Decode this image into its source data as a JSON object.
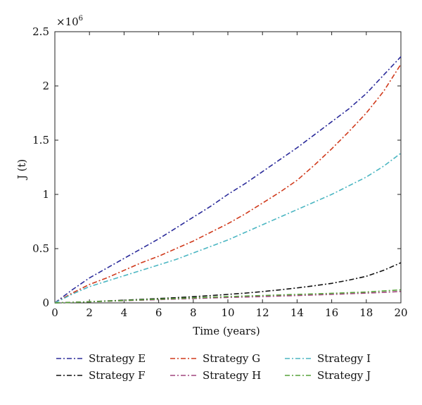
{
  "chart_data": {
    "type": "line",
    "title": "",
    "xlabel": "Time (years)",
    "ylabel": "J (t)",
    "y_multiplier_label": {
      "base": "×10",
      "exponent": "6"
    },
    "xlim": [
      0,
      20
    ],
    "ylim": [
      0,
      2.5
    ],
    "x_ticks": [
      0,
      2,
      4,
      6,
      8,
      10,
      12,
      14,
      16,
      18,
      20
    ],
    "x_tick_labels": [
      "0",
      "2",
      "4",
      "6",
      "8",
      "10",
      "12",
      "14",
      "16",
      "18",
      "20"
    ],
    "y_ticks": [
      0,
      0.5,
      1,
      1.5,
      2,
      2.5
    ],
    "y_tick_labels": [
      "0",
      "0.5",
      "1",
      "1.5",
      "2",
      "2.5"
    ],
    "grid": false,
    "legend_position": "bottom",
    "x": [
      0,
      1,
      2,
      3,
      4,
      5,
      6,
      7,
      8,
      9,
      10,
      11,
      12,
      13,
      14,
      15,
      16,
      17,
      18,
      19,
      20
    ],
    "series": [
      {
        "name": "Strategy E",
        "color": "#2b2b9a",
        "dash": "dashdot",
        "values": [
          0,
          0.12,
          0.23,
          0.32,
          0.41,
          0.5,
          0.59,
          0.69,
          0.79,
          0.89,
          1.0,
          1.1,
          1.21,
          1.32,
          1.43,
          1.55,
          1.67,
          1.79,
          1.93,
          2.1,
          2.27
        ]
      },
      {
        "name": "Strategy F",
        "color": "#111111",
        "dash": "dashdot",
        "values": [
          0,
          0.005,
          0.01,
          0.018,
          0.025,
          0.032,
          0.04,
          0.048,
          0.057,
          0.067,
          0.078,
          0.09,
          0.104,
          0.12,
          0.138,
          0.158,
          0.18,
          0.21,
          0.245,
          0.3,
          0.37
        ]
      },
      {
        "name": "Strategy G",
        "color": "#d03a1c",
        "dash": "dashdot",
        "values": [
          0,
          0.09,
          0.17,
          0.23,
          0.3,
          0.37,
          0.43,
          0.5,
          0.57,
          0.65,
          0.73,
          0.82,
          0.92,
          1.02,
          1.13,
          1.27,
          1.42,
          1.58,
          1.75,
          1.95,
          2.2
        ]
      },
      {
        "name": "Strategy H",
        "color": "#a0457e",
        "dash": "dashdot",
        "values": [
          0,
          0.005,
          0.01,
          0.015,
          0.02,
          0.025,
          0.03,
          0.035,
          0.04,
          0.045,
          0.05,
          0.054,
          0.058,
          0.063,
          0.068,
          0.073,
          0.078,
          0.084,
          0.09,
          0.097,
          0.105
        ]
      },
      {
        "name": "Strategy I",
        "color": "#4bb6c2",
        "dash": "dashdot",
        "values": [
          0,
          0.08,
          0.15,
          0.2,
          0.25,
          0.3,
          0.35,
          0.4,
          0.46,
          0.52,
          0.58,
          0.65,
          0.72,
          0.79,
          0.86,
          0.93,
          1.0,
          1.08,
          1.16,
          1.26,
          1.38
        ]
      },
      {
        "name": "Strategy J",
        "color": "#56a23a",
        "dash": "dashdot",
        "values": [
          0,
          0.005,
          0.01,
          0.016,
          0.022,
          0.028,
          0.034,
          0.04,
          0.046,
          0.052,
          0.058,
          0.063,
          0.068,
          0.073,
          0.078,
          0.083,
          0.088,
          0.094,
          0.1,
          0.11,
          0.12
        ]
      }
    ],
    "legend_order": [
      [
        "Strategy E",
        "Strategy G",
        "Strategy I"
      ],
      [
        "Strategy F",
        "Strategy H",
        "Strategy J"
      ]
    ]
  }
}
